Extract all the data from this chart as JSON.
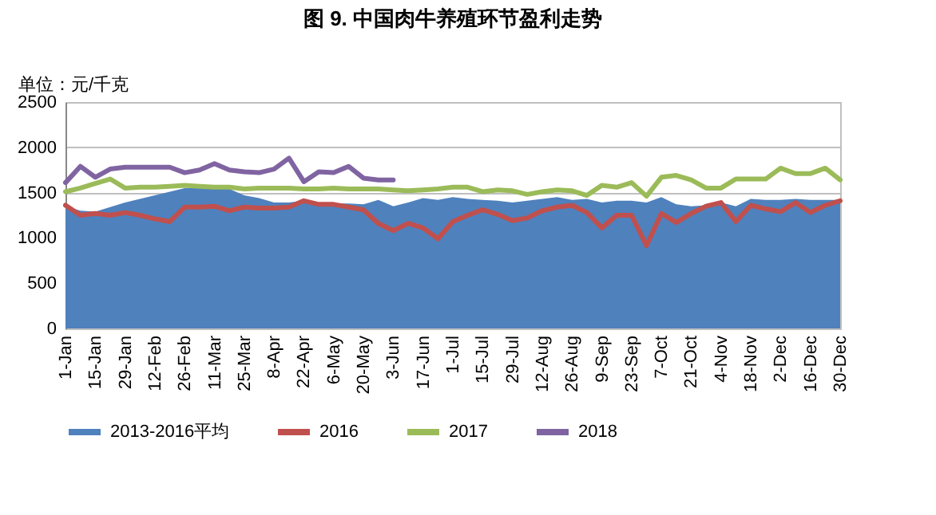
{
  "chart_data": {
    "type": "line",
    "title": "图 9. 中国肉牛养殖环节盈利走势",
    "ylabel": "单位：元/千克",
    "categories": [
      "1-Jan",
      null,
      "15-Jan",
      null,
      "29-Jan",
      null,
      "12-Feb",
      null,
      "26-Feb",
      null,
      "11-Mar",
      null,
      "25-Mar",
      null,
      "8-Apr",
      null,
      "22-Apr",
      null,
      "6-May",
      null,
      "20-May",
      null,
      "3-Jun",
      null,
      "17-Jun",
      null,
      "1-Jul",
      null,
      "15-Jul",
      null,
      "29-Jul",
      null,
      "12-Aug",
      null,
      "26-Aug",
      null,
      "9-Sep",
      null,
      "23-Sep",
      null,
      "7-Oct",
      null,
      "21-Oct",
      null,
      "4-Nov",
      null,
      "18-Nov",
      null,
      "2-Dec",
      null,
      "16-Dec",
      null,
      "30-Dec"
    ],
    "series": [
      {
        "name": "2013-2016平均",
        "type": "area",
        "color": "#4f81bd",
        "values": [
          1350,
          1300,
          1290,
          1340,
          1390,
          1430,
          1470,
          1510,
          1550,
          1550,
          1540,
          1540,
          1470,
          1440,
          1390,
          1390,
          1410,
          1390,
          1380,
          1380,
          1370,
          1420,
          1350,
          1390,
          1440,
          1420,
          1450,
          1430,
          1420,
          1410,
          1390,
          1410,
          1430,
          1450,
          1420,
          1430,
          1390,
          1410,
          1410,
          1390,
          1450,
          1370,
          1350,
          1360,
          1390,
          1350,
          1430,
          1420,
          1420,
          1430,
          1420,
          1420,
          1420
        ]
      },
      {
        "name": "2016",
        "color": "#c0504d",
        "values": [
          1360,
          1250,
          1270,
          1250,
          1280,
          1250,
          1210,
          1180,
          1340,
          1340,
          1350,
          1300,
          1340,
          1330,
          1330,
          1340,
          1410,
          1370,
          1370,
          1340,
          1310,
          1160,
          1080,
          1160,
          1110,
          990,
          1180,
          1250,
          1310,
          1260,
          1190,
          1220,
          1300,
          1340,
          1360,
          1280,
          1110,
          1250,
          1250,
          915,
          1270,
          1170,
          1270,
          1350,
          1390,
          1180,
          1360,
          1320,
          1290,
          1390,
          1280,
          1360,
          1410
        ]
      },
      {
        "name": "2017",
        "color": "#9bbb59",
        "values": [
          1510,
          1550,
          1600,
          1650,
          1550,
          1560,
          1560,
          1570,
          1580,
          1570,
          1560,
          1560,
          1540,
          1550,
          1550,
          1550,
          1540,
          1540,
          1550,
          1540,
          1540,
          1540,
          1530,
          1520,
          1530,
          1540,
          1560,
          1560,
          1510,
          1530,
          1520,
          1480,
          1510,
          1530,
          1520,
          1470,
          1580,
          1560,
          1610,
          1460,
          1670,
          1690,
          1640,
          1550,
          1550,
          1650,
          1650,
          1650,
          1770,
          1710,
          1710,
          1770,
          1640
        ]
      },
      {
        "name": "2018",
        "color": "#8064a2",
        "values": [
          1610,
          1790,
          1670,
          1760,
          1780,
          1780,
          1780,
          1780,
          1720,
          1750,
          1820,
          1750,
          1730,
          1720,
          1760,
          1880,
          1620,
          1730,
          1720,
          1790,
          1660,
          1640,
          1640,
          null,
          null,
          null,
          null,
          null,
          null,
          null,
          null,
          null,
          null,
          null,
          null,
          null,
          null,
          null,
          null,
          null,
          null,
          null,
          null,
          null,
          null,
          null,
          null,
          null,
          null,
          null,
          null,
          null,
          null
        ]
      }
    ],
    "ylim": [
      0,
      2500
    ],
    "yticks": [
      0,
      500,
      1000,
      1500,
      2000,
      2500
    ],
    "grid": "y",
    "legend": "bottom",
    "marker": "none",
    "line_style": "solid"
  }
}
